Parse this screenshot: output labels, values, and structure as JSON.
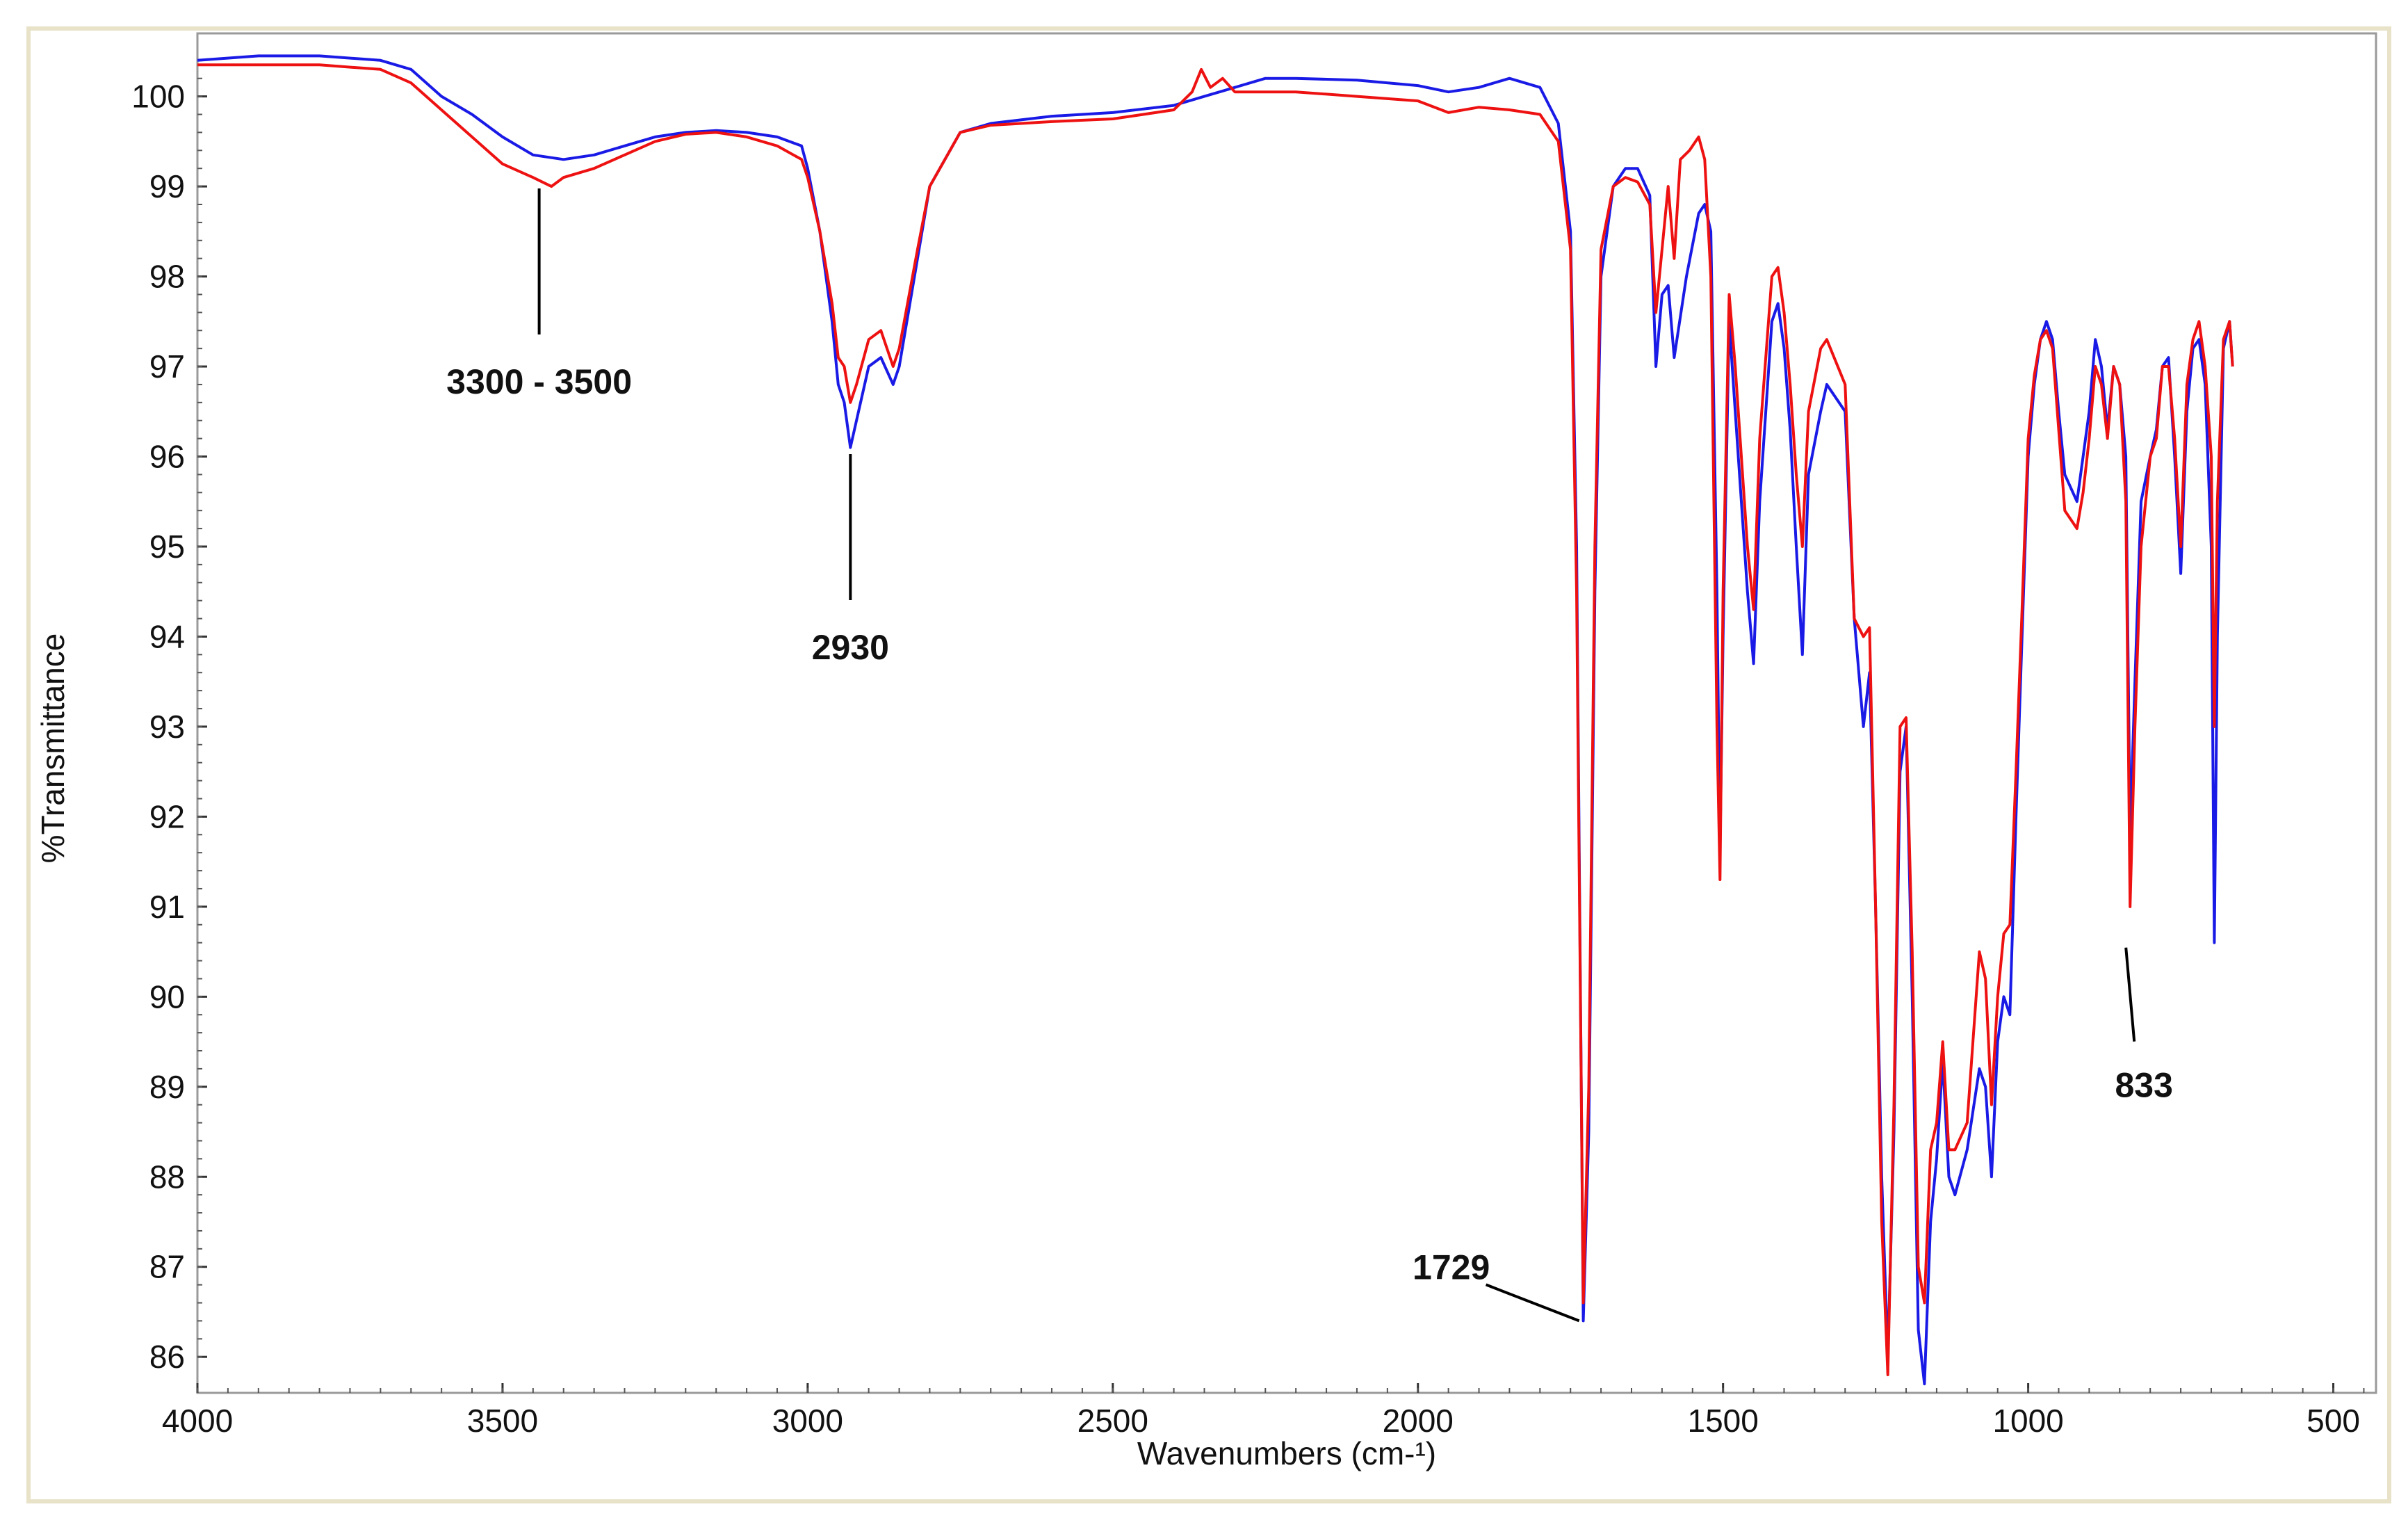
{
  "chart_data": {
    "type": "line",
    "title": "",
    "xlabel": "Wavenumbers (cm-¹)",
    "ylabel": "%Transmittance",
    "xlim": [
      4000,
      430
    ],
    "ylim": [
      85.6,
      100.7
    ],
    "x_ticks": [
      4000,
      3500,
      3000,
      2500,
      2000,
      1500,
      1000,
      500
    ],
    "y_ticks": [
      100,
      99,
      98,
      97,
      96,
      95,
      94,
      93,
      92,
      91,
      90,
      89,
      88,
      87,
      86
    ],
    "grid": false,
    "colors": {
      "blue": "#1a1ae6",
      "red": "#ee1111",
      "frame": "#e8e2c8"
    },
    "series": [
      {
        "color": "#1a1ae6",
        "points": [
          [
            4000,
            100.4
          ],
          [
            3900,
            100.45
          ],
          [
            3800,
            100.45
          ],
          [
            3700,
            100.4
          ],
          [
            3650,
            100.3
          ],
          [
            3600,
            100.0
          ],
          [
            3550,
            99.8
          ],
          [
            3500,
            99.55
          ],
          [
            3450,
            99.35
          ],
          [
            3400,
            99.3
          ],
          [
            3350,
            99.35
          ],
          [
            3300,
            99.45
          ],
          [
            3250,
            99.55
          ],
          [
            3200,
            99.6
          ],
          [
            3150,
            99.62
          ],
          [
            3100,
            99.6
          ],
          [
            3050,
            99.55
          ],
          [
            3010,
            99.45
          ],
          [
            3000,
            99.2
          ],
          [
            2980,
            98.5
          ],
          [
            2960,
            97.5
          ],
          [
            2950,
            96.8
          ],
          [
            2940,
            96.6
          ],
          [
            2930,
            96.1
          ],
          [
            2920,
            96.4
          ],
          [
            2900,
            97.0
          ],
          [
            2880,
            97.1
          ],
          [
            2860,
            96.8
          ],
          [
            2850,
            97.0
          ],
          [
            2820,
            98.2
          ],
          [
            2800,
            99.0
          ],
          [
            2750,
            99.6
          ],
          [
            2700,
            99.7
          ],
          [
            2600,
            99.78
          ],
          [
            2500,
            99.82
          ],
          [
            2400,
            99.9
          ],
          [
            2350,
            100.0
          ],
          [
            2300,
            100.1
          ],
          [
            2250,
            100.2
          ],
          [
            2200,
            100.2
          ],
          [
            2100,
            100.18
          ],
          [
            2000,
            100.12
          ],
          [
            1950,
            100.05
          ],
          [
            1900,
            100.1
          ],
          [
            1850,
            100.2
          ],
          [
            1800,
            100.1
          ],
          [
            1770,
            99.7
          ],
          [
            1750,
            98.5
          ],
          [
            1740,
            95.0
          ],
          [
            1729,
            86.4
          ],
          [
            1720,
            88.5
          ],
          [
            1710,
            94.5
          ],
          [
            1700,
            98.0
          ],
          [
            1680,
            99.0
          ],
          [
            1660,
            99.2
          ],
          [
            1640,
            99.2
          ],
          [
            1620,
            98.9
          ],
          [
            1610,
            97.0
          ],
          [
            1600,
            97.8
          ],
          [
            1590,
            97.9
          ],
          [
            1580,
            97.1
          ],
          [
            1560,
            98.0
          ],
          [
            1540,
            98.7
          ],
          [
            1530,
            98.8
          ],
          [
            1520,
            98.5
          ],
          [
            1510,
            94.5
          ],
          [
            1505,
            91.6
          ],
          [
            1500,
            94.0
          ],
          [
            1490,
            97.5
          ],
          [
            1480,
            96.5
          ],
          [
            1460,
            94.5
          ],
          [
            1450,
            93.7
          ],
          [
            1440,
            95.5
          ],
          [
            1420,
            97.5
          ],
          [
            1410,
            97.7
          ],
          [
            1400,
            97.2
          ],
          [
            1390,
            96.3
          ],
          [
            1380,
            95.0
          ],
          [
            1370,
            93.8
          ],
          [
            1360,
            95.8
          ],
          [
            1340,
            96.5
          ],
          [
            1330,
            96.8
          ],
          [
            1300,
            96.5
          ],
          [
            1285,
            94.2
          ],
          [
            1270,
            93.0
          ],
          [
            1260,
            93.6
          ],
          [
            1250,
            91.0
          ],
          [
            1240,
            88.0
          ],
          [
            1230,
            86.0
          ],
          [
            1220,
            88.5
          ],
          [
            1210,
            92.5
          ],
          [
            1200,
            93.0
          ],
          [
            1190,
            90.0
          ],
          [
            1180,
            86.3
          ],
          [
            1170,
            85.7
          ],
          [
            1160,
            87.5
          ],
          [
            1150,
            88.2
          ],
          [
            1140,
            89.3
          ],
          [
            1130,
            88.0
          ],
          [
            1120,
            87.8
          ],
          [
            1100,
            88.3
          ],
          [
            1080,
            89.2
          ],
          [
            1070,
            89.0
          ],
          [
            1060,
            88.0
          ],
          [
            1050,
            89.5
          ],
          [
            1040,
            90.0
          ],
          [
            1030,
            89.8
          ],
          [
            1020,
            92.0
          ],
          [
            1010,
            94.0
          ],
          [
            1000,
            96.0
          ],
          [
            990,
            96.8
          ],
          [
            980,
            97.3
          ],
          [
            970,
            97.5
          ],
          [
            960,
            97.3
          ],
          [
            950,
            96.5
          ],
          [
            940,
            95.8
          ],
          [
            920,
            95.5
          ],
          [
            910,
            96.0
          ],
          [
            900,
            96.5
          ],
          [
            890,
            97.3
          ],
          [
            880,
            97.0
          ],
          [
            870,
            96.3
          ],
          [
            860,
            97.0
          ],
          [
            850,
            96.8
          ],
          [
            840,
            96.0
          ],
          [
            833,
            91.8
          ],
          [
            825,
            93.5
          ],
          [
            815,
            95.5
          ],
          [
            800,
            96.0
          ],
          [
            790,
            96.3
          ],
          [
            780,
            97.0
          ],
          [
            770,
            97.1
          ],
          [
            760,
            96.0
          ],
          [
            750,
            94.7
          ],
          [
            740,
            96.5
          ],
          [
            730,
            97.2
          ],
          [
            720,
            97.3
          ],
          [
            710,
            96.8
          ],
          [
            700,
            95.0
          ],
          [
            695,
            90.6
          ],
          [
            690,
            94.0
          ],
          [
            680,
            97.2
          ],
          [
            670,
            97.5
          ],
          [
            665,
            97.0
          ]
        ]
      },
      {
        "color": "#ee1111",
        "points": [
          [
            4000,
            100.35
          ],
          [
            3900,
            100.35
          ],
          [
            3800,
            100.35
          ],
          [
            3700,
            100.3
          ],
          [
            3650,
            100.15
          ],
          [
            3600,
            99.85
          ],
          [
            3550,
            99.55
          ],
          [
            3500,
            99.25
          ],
          [
            3450,
            99.1
          ],
          [
            3420,
            99.0
          ],
          [
            3400,
            99.1
          ],
          [
            3350,
            99.2
          ],
          [
            3300,
            99.35
          ],
          [
            3250,
            99.5
          ],
          [
            3200,
            99.58
          ],
          [
            3150,
            99.6
          ],
          [
            3100,
            99.55
          ],
          [
            3050,
            99.45
          ],
          [
            3010,
            99.3
          ],
          [
            3000,
            99.1
          ],
          [
            2980,
            98.5
          ],
          [
            2960,
            97.7
          ],
          [
            2950,
            97.1
          ],
          [
            2940,
            97.0
          ],
          [
            2930,
            96.6
          ],
          [
            2920,
            96.8
          ],
          [
            2900,
            97.3
          ],
          [
            2880,
            97.4
          ],
          [
            2860,
            97.0
          ],
          [
            2850,
            97.2
          ],
          [
            2820,
            98.3
          ],
          [
            2800,
            99.0
          ],
          [
            2750,
            99.6
          ],
          [
            2700,
            99.68
          ],
          [
            2600,
            99.72
          ],
          [
            2500,
            99.75
          ],
          [
            2400,
            99.85
          ],
          [
            2370,
            100.05
          ],
          [
            2355,
            100.3
          ],
          [
            2340,
            100.1
          ],
          [
            2320,
            100.2
          ],
          [
            2300,
            100.05
          ],
          [
            2200,
            100.05
          ],
          [
            2100,
            100.0
          ],
          [
            2000,
            99.95
          ],
          [
            1950,
            99.82
          ],
          [
            1900,
            99.88
          ],
          [
            1850,
            99.85
          ],
          [
            1800,
            99.8
          ],
          [
            1770,
            99.5
          ],
          [
            1750,
            98.3
          ],
          [
            1740,
            94.5
          ],
          [
            1729,
            86.6
          ],
          [
            1720,
            89.0
          ],
          [
            1710,
            95.0
          ],
          [
            1700,
            98.3
          ],
          [
            1680,
            99.0
          ],
          [
            1660,
            99.1
          ],
          [
            1640,
            99.05
          ],
          [
            1620,
            98.8
          ],
          [
            1610,
            97.6
          ],
          [
            1600,
            98.3
          ],
          [
            1590,
            99.0
          ],
          [
            1580,
            98.2
          ],
          [
            1570,
            99.3
          ],
          [
            1555,
            99.4
          ],
          [
            1540,
            99.55
          ],
          [
            1530,
            99.3
          ],
          [
            1520,
            98.0
          ],
          [
            1510,
            93.0
          ],
          [
            1505,
            91.3
          ],
          [
            1500,
            94.5
          ],
          [
            1490,
            97.8
          ],
          [
            1480,
            97.0
          ],
          [
            1460,
            95.0
          ],
          [
            1450,
            94.3
          ],
          [
            1440,
            96.2
          ],
          [
            1420,
            98.0
          ],
          [
            1410,
            98.1
          ],
          [
            1400,
            97.6
          ],
          [
            1390,
            96.8
          ],
          [
            1380,
            95.8
          ],
          [
            1370,
            95.0
          ],
          [
            1360,
            96.5
          ],
          [
            1340,
            97.2
          ],
          [
            1330,
            97.3
          ],
          [
            1300,
            96.8
          ],
          [
            1285,
            94.2
          ],
          [
            1270,
            94.0
          ],
          [
            1260,
            94.1
          ],
          [
            1250,
            91.0
          ],
          [
            1240,
            87.5
          ],
          [
            1230,
            85.8
          ],
          [
            1220,
            88.8
          ],
          [
            1210,
            93.0
          ],
          [
            1200,
            93.1
          ],
          [
            1190,
            90.5
          ],
          [
            1180,
            87.0
          ],
          [
            1170,
            86.6
          ],
          [
            1160,
            88.3
          ],
          [
            1150,
            88.6
          ],
          [
            1140,
            89.5
          ],
          [
            1130,
            88.3
          ],
          [
            1120,
            88.3
          ],
          [
            1100,
            88.6
          ],
          [
            1080,
            90.5
          ],
          [
            1070,
            90.2
          ],
          [
            1060,
            88.8
          ],
          [
            1050,
            90.0
          ],
          [
            1040,
            90.7
          ],
          [
            1030,
            90.8
          ],
          [
            1020,
            92.5
          ],
          [
            1010,
            94.3
          ],
          [
            1000,
            96.2
          ],
          [
            990,
            96.9
          ],
          [
            980,
            97.3
          ],
          [
            970,
            97.4
          ],
          [
            960,
            97.2
          ],
          [
            950,
            96.3
          ],
          [
            940,
            95.4
          ],
          [
            920,
            95.2
          ],
          [
            910,
            95.6
          ],
          [
            900,
            96.2
          ],
          [
            890,
            97.0
          ],
          [
            880,
            96.8
          ],
          [
            870,
            96.2
          ],
          [
            860,
            97.0
          ],
          [
            850,
            96.8
          ],
          [
            840,
            95.5
          ],
          [
            833,
            91.0
          ],
          [
            825,
            93.0
          ],
          [
            815,
            95.0
          ],
          [
            800,
            96.0
          ],
          [
            790,
            96.2
          ],
          [
            780,
            97.0
          ],
          [
            770,
            97.0
          ],
          [
            760,
            96.2
          ],
          [
            750,
            95.0
          ],
          [
            740,
            96.8
          ],
          [
            730,
            97.3
          ],
          [
            720,
            97.5
          ],
          [
            710,
            97.0
          ],
          [
            700,
            96.0
          ],
          [
            695,
            93.0
          ],
          [
            690,
            95.5
          ],
          [
            680,
            97.3
          ],
          [
            670,
            97.5
          ],
          [
            665,
            97.0
          ]
        ]
      }
    ],
    "annotations": [
      {
        "text": "3300 - 3500",
        "x": 3440,
        "y": 98.9
      },
      {
        "text": "2930",
        "x": 2930,
        "y": 95.95
      },
      {
        "text": "1729",
        "x": 1729,
        "y": 86.4
      },
      {
        "text": "833",
        "x": 833,
        "y": 90.7
      }
    ]
  }
}
